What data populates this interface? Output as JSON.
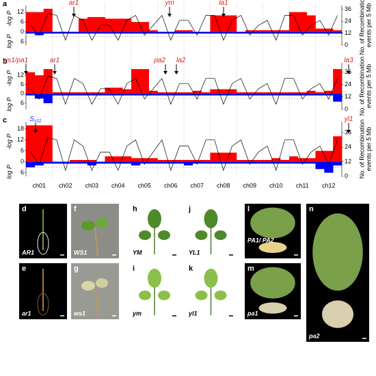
{
  "chromosomes": [
    "ch01",
    "ch02",
    "ch03",
    "ch04",
    "ch05",
    "ch06",
    "ch07",
    "ch08",
    "ch09",
    "ch10",
    "ch11",
    "ch12"
  ],
  "chart_data": [
    {
      "type": "bar",
      "panel": "a",
      "ylabel_top": "-log P",
      "ylabel_bottom": "log P",
      "y2label": [
        "No. of Recombination",
        "events per 5 Mb"
      ],
      "ylim": [
        -8,
        16
      ],
      "yticks": [
        12,
        6,
        0,
        {
          "value": -6,
          "label": "6"
        }
      ],
      "y2lim": [
        0,
        40
      ],
      "y2ticks": [
        0,
        12,
        24,
        36
      ],
      "annotations": [
        {
          "text": "ar1"
        },
        {
          "text": "ym"
        },
        {
          "text": "la1"
        }
      ],
      "series": [
        {
          "color": "#ff0000",
          "values": [
            12,
            12,
            14,
            0,
            0,
            0,
            8,
            9,
            9,
            8,
            8,
            8,
            6,
            6,
            1,
            0,
            0,
            1,
            1,
            0,
            0,
            10,
            10,
            10,
            0,
            1,
            1,
            1,
            1,
            1,
            12,
            12,
            10,
            2,
            2,
            1
          ]
        },
        {
          "color": "#0000ff",
          "values": [
            -1,
            -2,
            -1,
            -1,
            -1,
            -1,
            -1,
            -1,
            -1,
            -1,
            -1,
            -1,
            -1,
            -1,
            -1,
            -1,
            -1,
            -1,
            -1,
            -1,
            -1,
            -1,
            -1,
            -1,
            -1,
            -1,
            -1,
            -1,
            -1,
            -1,
            -1,
            -1,
            -1,
            -1,
            -1,
            -1
          ]
        },
        {
          "color": "#000000",
          "axis": "y2",
          "values": [
            20,
            10,
            32,
            30,
            5,
            30,
            25,
            5,
            20,
            20,
            5,
            25,
            30,
            10,
            20,
            30,
            5,
            25,
            25,
            10,
            30,
            30,
            5,
            25,
            30,
            10,
            20,
            25,
            5,
            30,
            30,
            10,
            20,
            25,
            10,
            30
          ]
        }
      ]
    },
    {
      "type": "bar",
      "panel": "b",
      "ylabel_top": "-log P",
      "ylabel_bottom": "log P",
      "y2label": [
        "No. of Recombination",
        "events per 5 Mb"
      ],
      "ylim": [
        -10,
        20
      ],
      "yticks": [
        12,
        6,
        0,
        {
          "value": -6,
          "label": "6"
        }
      ],
      "y2lim": [
        0,
        45
      ],
      "y2ticks": [
        0,
        12,
        24,
        36
      ],
      "annotations": [
        {
          "text": "ws1/pa1"
        },
        {
          "text": "ar1"
        },
        {
          "text": "pa2"
        },
        {
          "text": "la2"
        },
        {
          "text": "la3"
        }
      ],
      "series": [
        {
          "color": "#ff0000",
          "values": [
            14,
            12,
            16,
            1,
            1,
            1,
            1,
            1,
            1,
            4,
            4,
            3,
            16,
            16,
            2,
            1,
            1,
            1,
            1,
            2,
            1,
            3,
            3,
            3,
            1,
            1,
            1,
            1,
            1,
            1,
            1,
            1,
            2,
            1,
            2,
            16
          ]
        },
        {
          "color": "#0000ff",
          "values": [
            -1,
            -3,
            -6,
            -1,
            -1,
            -1,
            -1,
            -1,
            -1,
            -1,
            -1,
            -1,
            -1,
            -1,
            -1,
            -1,
            -1,
            -1,
            -1,
            -1,
            -1,
            -1,
            -1,
            -1,
            -1,
            -1,
            -1,
            -1,
            -1,
            -1,
            -1,
            -1,
            -1,
            -1,
            -1,
            -5
          ]
        },
        {
          "color": "#000000",
          "axis": "y2",
          "values": [
            20,
            10,
            32,
            30,
            5,
            30,
            25,
            5,
            20,
            20,
            5,
            25,
            30,
            10,
            20,
            30,
            5,
            25,
            25,
            10,
            30,
            30,
            5,
            25,
            30,
            10,
            20,
            25,
            5,
            30,
            30,
            10,
            20,
            25,
            10,
            30
          ]
        }
      ]
    },
    {
      "type": "bar",
      "panel": "c",
      "ylabel_top": "-log P",
      "ylabel_bottom": "log P",
      "y2label": [
        "No. of Recombination",
        "events per 5 Mb"
      ],
      "ylim": [
        -8,
        22
      ],
      "yticks": [
        18,
        12,
        6,
        0,
        {
          "value": -6,
          "label": "6"
        }
      ],
      "y2lim": [
        0,
        45
      ],
      "y2ticks": [
        0,
        12,
        24,
        36
      ],
      "annotations": [
        {
          "text": "S",
          "sub": "s11"
        },
        {
          "text": "yl1"
        }
      ],
      "series": [
        {
          "color": "#ff0000",
          "values": [
            20,
            20,
            20,
            0,
            0,
            1,
            1,
            1,
            0,
            3,
            3,
            3,
            2,
            2,
            2,
            1,
            1,
            1,
            1,
            1,
            1,
            5,
            5,
            5,
            1,
            1,
            1,
            1,
            2,
            1,
            3,
            2,
            2,
            6,
            6,
            14
          ]
        },
        {
          "color": "#0000ff",
          "values": [
            -3,
            -2,
            -1,
            -1,
            -1,
            -1,
            -1,
            -2,
            -1,
            -1,
            -1,
            -1,
            -2,
            -1,
            -1,
            -1,
            -1,
            -1,
            -2,
            -1,
            -1,
            -1,
            -1,
            -1,
            -1,
            -1,
            -1,
            -1,
            -1,
            -1,
            -1,
            -1,
            -1,
            -4,
            -6,
            -2
          ]
        },
        {
          "color": "#000000",
          "axis": "y2",
          "values": [
            20,
            10,
            32,
            30,
            5,
            30,
            25,
            5,
            20,
            20,
            5,
            25,
            30,
            10,
            20,
            30,
            5,
            25,
            25,
            10,
            30,
            30,
            5,
            25,
            30,
            10,
            20,
            25,
            5,
            30,
            30,
            10,
            20,
            25,
            10,
            30
          ]
        }
      ]
    }
  ],
  "photos": [
    {
      "panel": "d",
      "caption": "AR1"
    },
    {
      "panel": "e",
      "caption": "ar1"
    },
    {
      "panel": "f",
      "caption": "WS1"
    },
    {
      "panel": "g",
      "caption": "ws1"
    },
    {
      "panel": "h",
      "caption": "YM"
    },
    {
      "panel": "i",
      "caption": "ym"
    },
    {
      "panel": "j",
      "caption": "YL1"
    },
    {
      "panel": "k",
      "caption": "yl1"
    },
    {
      "panel": "l",
      "caption": "PA1/\nPA2"
    },
    {
      "panel": "m",
      "caption": "pa1"
    },
    {
      "panel": "n",
      "caption": "pa2"
    }
  ]
}
